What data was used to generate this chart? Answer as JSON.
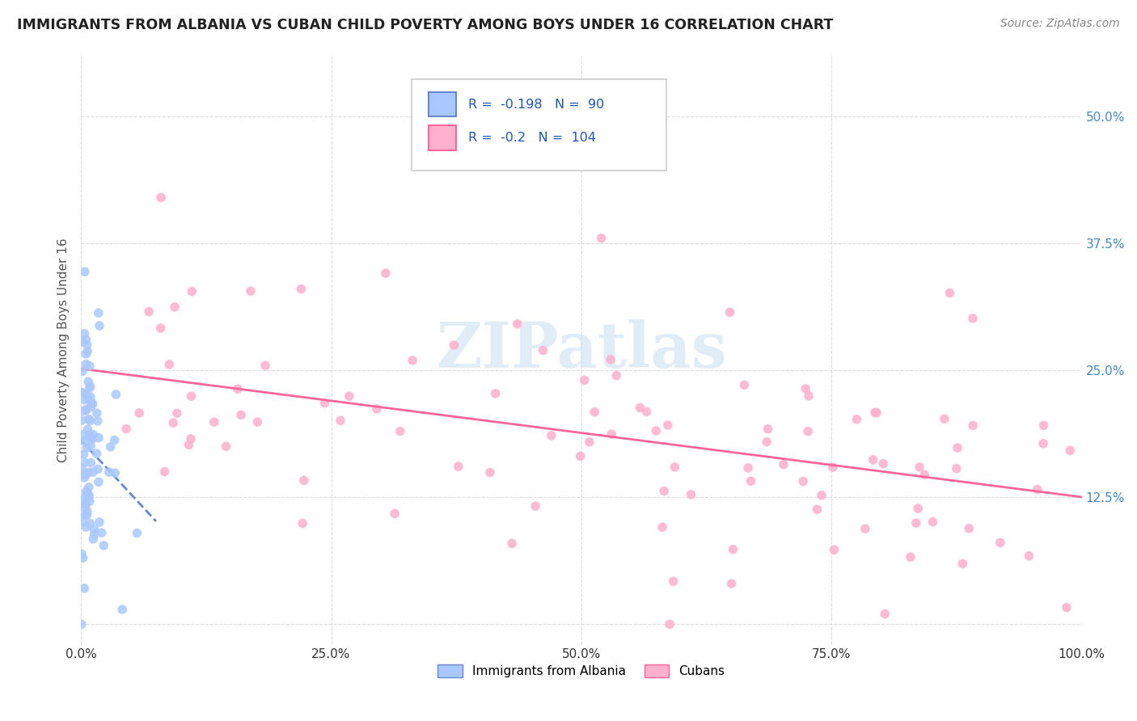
{
  "title": "IMMIGRANTS FROM ALBANIA VS CUBAN CHILD POVERTY AMONG BOYS UNDER 16 CORRELATION CHART",
  "source": "Source: ZipAtlas.com",
  "ylabel": "Child Poverty Among Boys Under 16",
  "xlim": [
    0.0,
    1.0
  ],
  "ylim": [
    -0.02,
    0.56
  ],
  "yticks": [
    0.0,
    0.125,
    0.25,
    0.375,
    0.5
  ],
  "ytick_labels": [
    "",
    "12.5%",
    "25.0%",
    "37.5%",
    "50.0%"
  ],
  "xticks": [
    0.0,
    0.25,
    0.5,
    0.75,
    1.0
  ],
  "xtick_labels": [
    "0.0%",
    "25.0%",
    "50.0%",
    "75.0%",
    "100.0%"
  ],
  "albania_color": "#aac8ff",
  "cuban_color": "#ffb0cc",
  "albania_line_color": "#6688cc",
  "cuban_line_color": "#ff6699",
  "albania_R": -0.198,
  "albania_N": 90,
  "cuban_R": -0.2,
  "cuban_N": 104,
  "legend_albania_label": "Immigrants from Albania",
  "legend_cuban_label": "Cubans",
  "watermark": "ZIPatlas",
  "background_color": "#ffffff",
  "grid_color": "#dddddd",
  "title_color": "#222222",
  "source_color": "#888888",
  "ylabel_color": "#555555",
  "ytick_color": "#4488cc",
  "xtick_color": "#333333"
}
